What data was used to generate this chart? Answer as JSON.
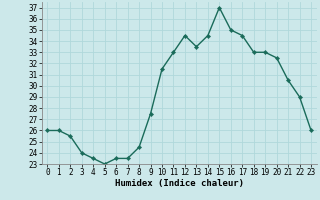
{
  "x": [
    0,
    1,
    2,
    3,
    4,
    5,
    6,
    7,
    8,
    9,
    10,
    11,
    12,
    13,
    14,
    15,
    16,
    17,
    18,
    19,
    20,
    21,
    22,
    23
  ],
  "y": [
    26,
    26,
    25.5,
    24,
    23.5,
    23,
    23.5,
    23.5,
    24.5,
    27.5,
    31.5,
    33,
    34.5,
    33.5,
    34.5,
    37,
    35,
    34.5,
    33,
    33,
    32.5,
    30.5,
    29,
    26
  ],
  "line_color": "#1a6b5a",
  "marker": "D",
  "marker_size": 2.2,
  "bg_color": "#cce8ea",
  "grid_color": "#b0d8db",
  "xlabel": "Humidex (Indice chaleur)",
  "ylim": [
    23,
    37.5
  ],
  "xlim": [
    -0.5,
    23.5
  ],
  "yticks": [
    23,
    24,
    25,
    26,
    27,
    28,
    29,
    30,
    31,
    32,
    33,
    34,
    35,
    36,
    37
  ],
  "xticks": [
    0,
    1,
    2,
    3,
    4,
    5,
    6,
    7,
    8,
    9,
    10,
    11,
    12,
    13,
    14,
    15,
    16,
    17,
    18,
    19,
    20,
    21,
    22,
    23
  ],
  "tick_fontsize": 5.5,
  "xlabel_fontsize": 6.5,
  "line_width": 1.0
}
